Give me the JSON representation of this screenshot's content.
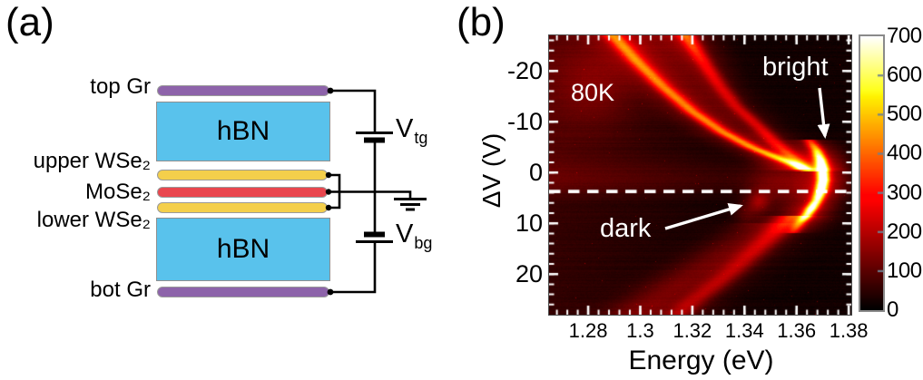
{
  "panels": {
    "a": {
      "label": "(a)"
    },
    "b": {
      "label": "(b)"
    }
  },
  "device": {
    "layers": [
      {
        "id": "top-gr",
        "label": "top Gr",
        "color": "#8d63aa"
      },
      {
        "id": "hbn-top",
        "label": "hBN",
        "color": "#59c2ec"
      },
      {
        "id": "upper-wse2",
        "label": "upper WSe₂",
        "color": "#f4cf4b"
      },
      {
        "id": "mose2",
        "label": "MoSe₂",
        "color": "#e9464e"
      },
      {
        "id": "lower-wse2",
        "label": "lower WSe₂",
        "color": "#f4cf4b"
      },
      {
        "id": "hbn-bottom",
        "label": "hBN",
        "color": "#59c2ec"
      },
      {
        "id": "bot-gr",
        "label": "bot Gr",
        "color": "#8d63aa"
      }
    ],
    "voltages": [
      {
        "main": "V",
        "sub": "tg"
      },
      {
        "main": "V",
        "sub": "bg"
      }
    ]
  },
  "chart_data": {
    "type": "heatmap",
    "xlabel": "Energy (eV)",
    "ylabel": "ΔV (V)",
    "x_range": [
      1.265,
      1.381
    ],
    "y_range": [
      -27,
      28
    ],
    "y_axis_inverted": true,
    "x_ticks": {
      "values": [
        1.28,
        1.3,
        1.32,
        1.34,
        1.36,
        1.38
      ],
      "labels": [
        "1.28",
        "1.3",
        "1.32",
        "1.34",
        "1.36",
        "1.38"
      ],
      "minor_step": 0.004
    },
    "y_ticks": {
      "values": [
        -20,
        -10,
        0,
        10,
        20
      ],
      "labels": [
        "-20",
        "-10",
        "0",
        "10",
        "20"
      ],
      "minor_step": 2
    },
    "colorbar": {
      "min": 0,
      "max": 700,
      "tick_values": [
        700,
        600,
        500,
        400,
        300,
        200,
        100,
        0
      ],
      "tick_labels": [
        "700",
        "600",
        "500",
        "400",
        "300",
        "200",
        "100",
        "0"
      ],
      "colormap": "hot"
    },
    "annotations": {
      "temperature": "80K",
      "bright": "bright",
      "dark": "dark"
    },
    "dashed_line_V": 3.75,
    "features": {
      "base_level": 18,
      "left_haze": {
        "amp_above_line": 70,
        "amp_below_line": 38,
        "transition_V": 3.75,
        "transition_width": 1.6,
        "E_decay": 0.075
      },
      "diffuse_blob": {
        "E": 1.283,
        "V": -18,
        "sigma_E": 0.016,
        "sigma_V": 8,
        "amp": 75
      },
      "horizontal_band": {
        "V": 1.0,
        "sigma_V": 3.2,
        "amp": 35,
        "E_fade_start": 1.36,
        "E_fade_width": 0.006
      },
      "inner_glow": {
        "E": 1.3525,
        "V": 2.5,
        "sigma_E": 0.011,
        "sigma_V": 5.5,
        "amp": 85
      },
      "branch_bright": {
        "sigma_E": 0.0036,
        "glow_scale": 0.28,
        "glow_sigma_E": 0.011,
        "points": [
          [
            -27,
            1.2895,
            285
          ],
          [
            -22,
            1.2985,
            295
          ],
          [
            -17,
            1.3085,
            300
          ],
          [
            -12,
            1.32,
            308
          ],
          [
            -8,
            1.3315,
            318
          ],
          [
            -5,
            1.3425,
            330
          ],
          [
            -3,
            1.352,
            338
          ],
          [
            -1.5,
            1.3595,
            330
          ],
          [
            -0.3,
            1.3648,
            300
          ]
        ]
      },
      "branch_secondary": {
        "sigma_E": 0.0034,
        "glow_scale": 0.3,
        "glow_sigma_E": 0.01,
        "points": [
          [
            -27,
            1.3175,
            290
          ],
          [
            -24,
            1.3212,
            240
          ],
          [
            -21,
            1.3252,
            195
          ],
          [
            -17,
            1.3305,
            172
          ],
          [
            -13,
            1.3368,
            165
          ],
          [
            -9,
            1.3455,
            172
          ],
          [
            -6,
            1.3515,
            185
          ],
          [
            -4,
            1.356,
            200
          ],
          [
            -2,
            1.3605,
            215
          ],
          [
            -0.5,
            1.3632,
            210
          ]
        ]
      },
      "vertex_arc": {
        "sigma_E": 0.0024,
        "glow_scale": 0.32,
        "glow_sigma_E": 0.009,
        "points": [
          [
            -6.5,
            1.3648,
            200
          ],
          [
            -4.5,
            1.3676,
            380
          ],
          [
            -2.5,
            1.3692,
            540
          ],
          [
            -0.5,
            1.37,
            620
          ],
          [
            1.5,
            1.3702,
            640
          ],
          [
            3.5,
            1.3694,
            615
          ],
          [
            5.5,
            1.3678,
            500
          ],
          [
            7,
            1.3658,
            560
          ],
          [
            8.5,
            1.3638,
            460
          ],
          [
            10,
            1.3612,
            260
          ],
          [
            12,
            1.3585,
            130
          ]
        ]
      },
      "branch_lower": {
        "sigma_E": 0.0056,
        "glow_scale": 0.3,
        "glow_sigma_E": 0.015,
        "points": [
          [
            8.5,
            1.3585,
            200
          ],
          [
            11,
            1.3535,
            160
          ],
          [
            14,
            1.347,
            140
          ],
          [
            17,
            1.3405,
            130
          ],
          [
            20,
            1.334,
            125
          ],
          [
            23,
            1.3265,
            120
          ],
          [
            25.5,
            1.32,
            118
          ],
          [
            28,
            1.3148,
            115
          ]
        ]
      },
      "branch_lower_diffuse": {
        "sigma_E": 0.013,
        "glow_scale": 0,
        "glow_sigma_E": 0.02,
        "points": [
          [
            10,
            1.348,
            55
          ],
          [
            14,
            1.3375,
            68
          ],
          [
            18,
            1.326,
            78
          ],
          [
            22,
            1.3145,
            85
          ],
          [
            25,
            1.306,
            88
          ],
          [
            28,
            1.298,
            88
          ]
        ]
      },
      "dark_blobs": [
        {
          "E": 1.3455,
          "V": 5.8,
          "sigma_E": 0.004,
          "sigma_V": 2.1,
          "amp": 115
        },
        {
          "E": 1.3405,
          "V": 7.8,
          "sigma_E": 0.0045,
          "sigma_V": 2.2,
          "amp": 60
        }
      ],
      "interbranch_fill": {
        "amp": 68
      },
      "noise": {
        "pixel": 13,
        "row": 7,
        "speckle_prob": 0.0015,
        "speckle_amp": 130
      }
    }
  }
}
